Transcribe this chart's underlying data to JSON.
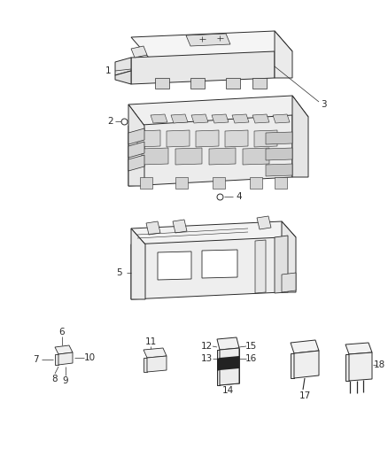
{
  "bg_color": "#ffffff",
  "fig_width": 4.38,
  "fig_height": 5.33,
  "dpi": 100,
  "text_color": "#2a2a2a",
  "font_size": 7.5,
  "line_color": "#2a2a2a",
  "line_width": 0.6
}
